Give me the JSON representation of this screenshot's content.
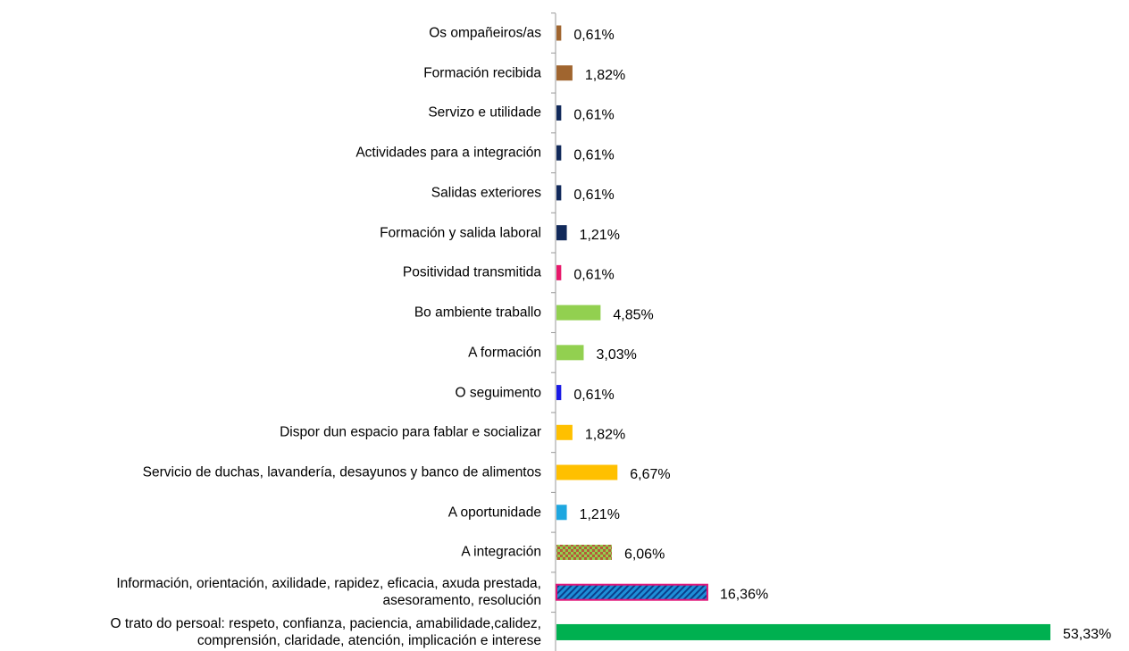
{
  "chart_data": {
    "type": "barh",
    "categories": [
      "Os ompañeiros/as",
      "Formación recibida",
      "Servizo e utilidade",
      "Actividades para a integración",
      "Salidas exteriores",
      "Formación y salida laboral",
      "Positividad transmitida",
      "Bo ambiente traballo",
      "A formación",
      "O seguimento",
      "Dispor dun espacio para fablar e socializar",
      "Servicio de duchas, lavandería, desayunos y banco de alimentos",
      "A oportunidade",
      "A integración",
      "Información, orientación, axilidade, rapidez, eficacia, axuda prestada,\nasesoramento, resolución",
      "O trato do persoal: respeto, confianza, paciencia, amabilidade,calidez,\ncomprensión, claridade, atención, implicación e interese"
    ],
    "values": [
      0.61,
      1.82,
      0.61,
      0.61,
      0.61,
      1.21,
      0.61,
      4.85,
      3.03,
      0.61,
      1.82,
      6.67,
      1.21,
      6.06,
      16.36,
      53.33
    ],
    "value_labels": [
      "0,61%",
      "1,82%",
      "0,61%",
      "0,61%",
      "0,61%",
      "1,21%",
      "0,61%",
      "4,85%",
      "3,03%",
      "0,61%",
      "1,82%",
      "6,67%",
      "1,21%",
      "6,06%",
      "16,36%",
      "53,33%"
    ],
    "colors": [
      "#a0652f",
      "#a0652f",
      "#11295a",
      "#11295a",
      "#11295a",
      "#11295a",
      "#e8196b",
      "#92d050",
      "#92d050",
      "#1a1ae6",
      "#ffc000",
      "#ffc000",
      "#1ea7e0",
      "#92d050",
      "#1e8fd8",
      "#00b050"
    ],
    "patterns": [
      null,
      null,
      null,
      null,
      null,
      null,
      null,
      null,
      null,
      null,
      null,
      null,
      null,
      "checker",
      "hatch",
      null
    ]
  }
}
